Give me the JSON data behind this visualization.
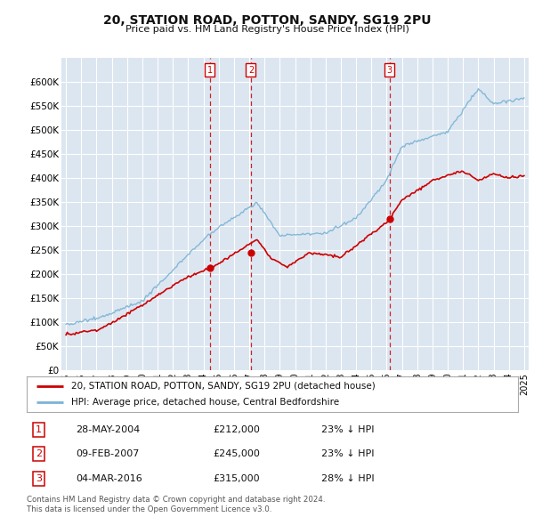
{
  "title": "20, STATION ROAD, POTTON, SANDY, SG19 2PU",
  "subtitle": "Price paid vs. HM Land Registry's House Price Index (HPI)",
  "ylim": [
    0,
    650000
  ],
  "yticks": [
    0,
    50000,
    100000,
    150000,
    200000,
    250000,
    300000,
    350000,
    400000,
    450000,
    500000,
    550000,
    600000
  ],
  "xlim_start": 1994.7,
  "xlim_end": 2025.3,
  "background_color": "#ffffff",
  "plot_bg_color": "#dce6f1",
  "grid_color": "#ffffff",
  "hpi_color": "#7ab3d4",
  "price_color": "#cc0000",
  "transactions": [
    {
      "num": 1,
      "date_str": "28-MAY-2004",
      "date_x": 2004.41,
      "price": 212000,
      "pct": "23%",
      "dir": "↓"
    },
    {
      "num": 2,
      "date_str": "09-FEB-2007",
      "date_x": 2007.11,
      "price": 245000,
      "pct": "23%",
      "dir": "↓"
    },
    {
      "num": 3,
      "date_str": "04-MAR-2016",
      "date_x": 2016.18,
      "price": 315000,
      "pct": "28%",
      "dir": "↓"
    }
  ],
  "legend_label_price": "20, STATION ROAD, POTTON, SANDY, SG19 2PU (detached house)",
  "legend_label_hpi": "HPI: Average price, detached house, Central Bedfordshire",
  "footer1": "Contains HM Land Registry data © Crown copyright and database right 2024.",
  "footer2": "This data is licensed under the Open Government Licence v3.0."
}
